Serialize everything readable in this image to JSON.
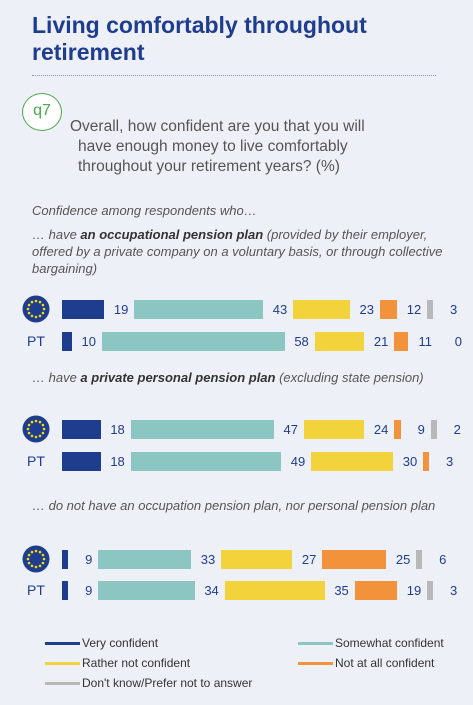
{
  "title": "Living comfortably throughout retirement",
  "question": {
    "badge": "q7",
    "lines": [
      "Overall, how confident are you that you will",
      "have enough money to live comfortably",
      "throughout your retirement years? (%)"
    ]
  },
  "subhead": "Confidence among respondents who…",
  "colors": {
    "very": "#1f3d8f",
    "somewhat": "#8cc6c2",
    "rather_not": "#f2d33b",
    "not_at_all": "#f2923a",
    "dont_know": "#b8b8b8"
  },
  "chart_data": {
    "type": "bar",
    "orientation": "horizontal-stacked",
    "unit": "%",
    "series": [
      {
        "name": "Very confident"
      },
      {
        "name": "Somewhat confident"
      },
      {
        "name": "Rather not confident"
      },
      {
        "name": "Not at all confident"
      },
      {
        "name": "Don't know/Prefer not to answer"
      }
    ],
    "groups": [
      {
        "label_pre": "… have ",
        "label_bold": "an occupational pension plan",
        "label_post": " (provided by their employer, offered by a private company on a voluntary basis, or through collective bargaining)",
        "rows": [
          {
            "label": "EU",
            "icon": "eu-flag-icon",
            "values": [
              19,
              43,
              23,
              12,
              3
            ]
          },
          {
            "label": "PT",
            "values": [
              10,
              58,
              21,
              11,
              0
            ]
          }
        ]
      },
      {
        "label_pre": "… have ",
        "label_bold": "a private personal pension plan",
        "label_post": " (excluding state pension)",
        "rows": [
          {
            "label": "EU",
            "icon": "eu-flag-icon",
            "values": [
              18,
              47,
              24,
              9,
              2
            ]
          },
          {
            "label": "PT",
            "values": [
              18,
              49,
              30,
              3,
              0
            ]
          }
        ]
      },
      {
        "label_pre": "… do not have an occupation pension plan, nor personal pension plan",
        "label_bold": "",
        "label_post": "",
        "rows": [
          {
            "label": "EU",
            "icon": "eu-flag-icon",
            "values": [
              9,
              33,
              27,
              25,
              6
            ]
          },
          {
            "label": "PT",
            "values": [
              9,
              34,
              35,
              19,
              3
            ]
          }
        ]
      }
    ]
  },
  "legend": [
    "Very confident",
    "Somewhat confident",
    "Rather not confident",
    "Not at all confident",
    "Don't know/Prefer not to answer"
  ]
}
